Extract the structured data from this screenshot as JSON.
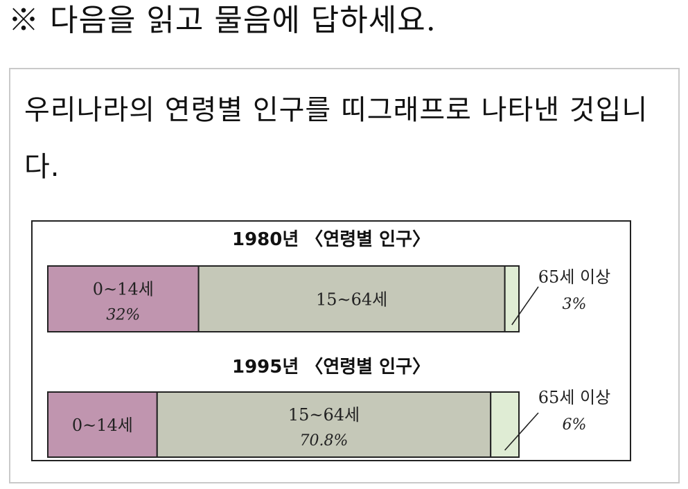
{
  "instruction": "※ 다음을 읽고 물음에 답하세요.",
  "question": "우리나라의 연령별 인구를 띠그래프로 나타낸 것입니다.",
  "colors": {
    "group_0_14": "#c095af",
    "group_15_64": "#c5c8b8",
    "group_65_plus": "#dfecd4",
    "border": "#222222"
  },
  "chart_data": [
    {
      "type": "bar",
      "subtype": "stacked-100-percent-strip",
      "title": "1980년 〈연령별 인구〉",
      "series": [
        {
          "name": "0~14세",
          "label": "0~14세",
          "value": 32,
          "value_label": "32%",
          "color": "#c095af"
        },
        {
          "name": "15~64세",
          "label": "15~64세",
          "value": 65,
          "value_label": "",
          "color": "#c5c8b8"
        },
        {
          "name": "65세 이상",
          "label": "65세 이상",
          "value": 3,
          "value_label": "3%",
          "color": "#dfecd4",
          "callout": true
        }
      ]
    },
    {
      "type": "bar",
      "subtype": "stacked-100-percent-strip",
      "title": "1995년 〈연령별 인구〉",
      "series": [
        {
          "name": "0~14세",
          "label": "0~14세",
          "value": 23.2,
          "value_label": "",
          "color": "#c095af"
        },
        {
          "name": "15~64세",
          "label": "15~64세",
          "value": 70.8,
          "value_label": "70.8%",
          "color": "#c5c8b8"
        },
        {
          "name": "65세 이상",
          "label": "65세 이상",
          "value": 6,
          "value_label": "6%",
          "color": "#dfecd4",
          "callout": true
        }
      ]
    }
  ]
}
